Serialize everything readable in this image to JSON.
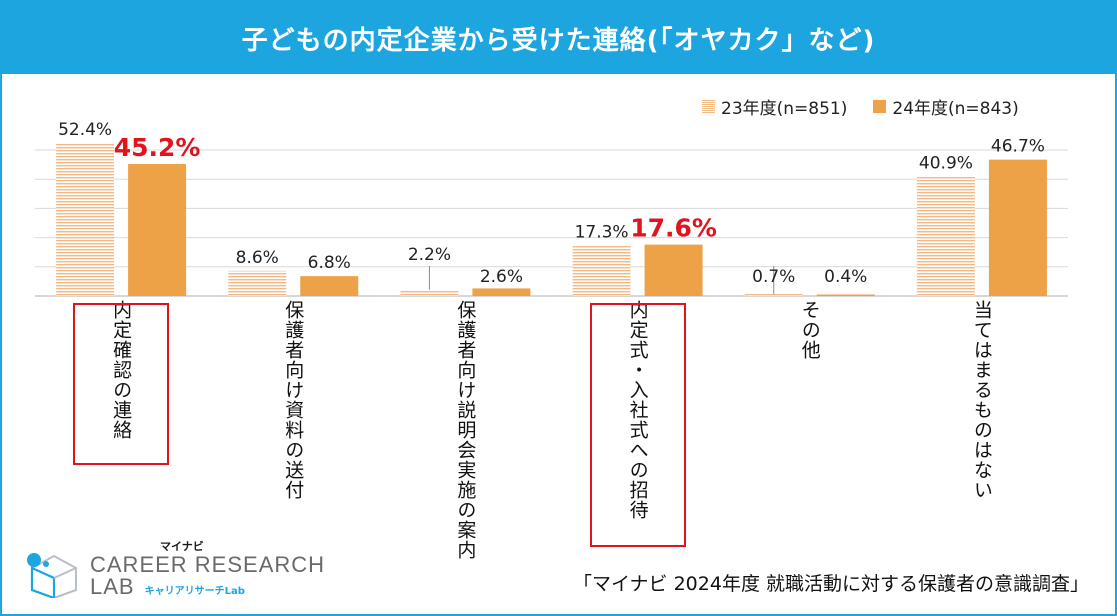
{
  "title": "子どもの内定企業から受けた連絡(「オヤカク」など)",
  "legend": {
    "series_23": "23年度(n=851)",
    "series_24": "24年度(n=843)"
  },
  "source": "「マイナビ 2024年度 就職活動に対する保護者の意識調査」",
  "logo": {
    "brand": "マイナビ",
    "line1": "CAREER RESEARCH",
    "line2": "LAB",
    "sub": "キャリアリサーチLab"
  },
  "colors": {
    "accent": "#1ca5df",
    "series_23": "#f2b983",
    "series_24": "#eda247",
    "highlight": "#e0141e"
  },
  "chart_data": {
    "type": "bar",
    "title": "子どもの内定企業から受けた連絡(「オヤカク」など)",
    "categories": [
      "内定確認の連絡",
      "保護者向け資料の送付",
      "保護者向け説明会実施の案内",
      "内定式・入社式への招待",
      "その他",
      "当てはまるものはない"
    ],
    "series": [
      {
        "name": "23年度(n=851)",
        "values": [
          52.4,
          8.6,
          2.2,
          17.3,
          0.7,
          40.9
        ],
        "labels": [
          "52.4%",
          "8.6%",
          "2.2%",
          "17.3%",
          "0.7%",
          "40.9%"
        ]
      },
      {
        "name": "24年度(n=843)",
        "values": [
          45.2,
          6.8,
          2.6,
          17.6,
          0.4,
          46.7
        ],
        "labels": [
          "45.2%",
          "6.8%",
          "2.6%",
          "17.6%",
          "0.4%",
          "46.7%"
        ]
      }
    ],
    "ylim": [
      0,
      52.4
    ],
    "highlighted_labels": [
      "45.2%",
      "17.6%"
    ],
    "highlighted_categories": [
      "内定確認の連絡",
      "内定式・入社式への招待"
    ],
    "legend_position": "top-right",
    "grid": true
  }
}
